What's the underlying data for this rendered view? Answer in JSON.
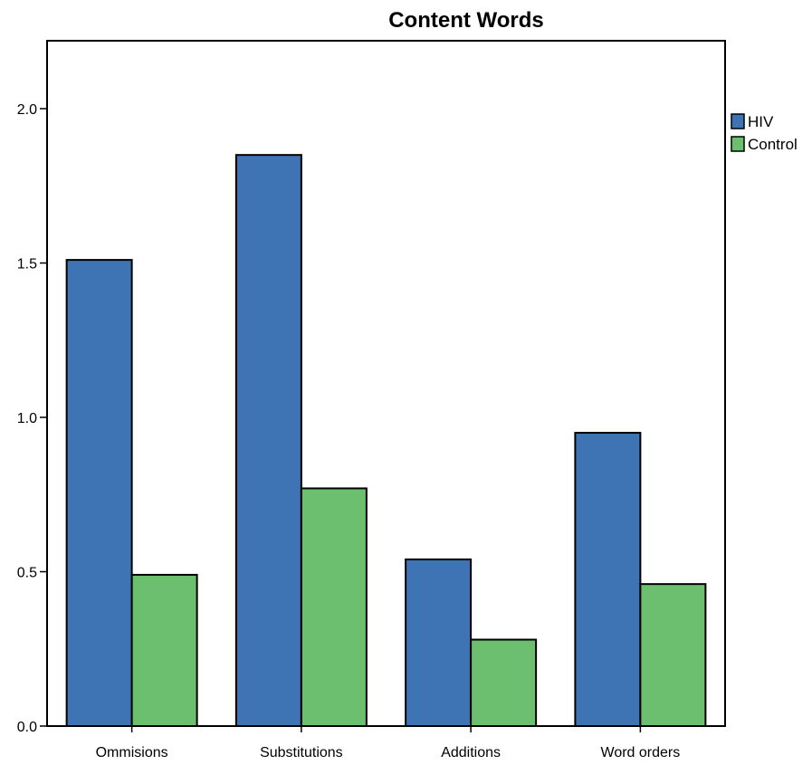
{
  "chart_data": {
    "type": "bar",
    "title": "Content Words",
    "xlabel": "",
    "ylabel": "",
    "categories": [
      "Ommisions",
      "Substitutions",
      "Additions",
      "Word orders"
    ],
    "series": [
      {
        "name": "HIV",
        "color": "#3e74b4",
        "values": [
          1.51,
          1.85,
          0.54,
          0.95
        ]
      },
      {
        "name": "Control",
        "color": "#6bbf6e",
        "values": [
          0.49,
          0.77,
          0.28,
          0.46
        ]
      }
    ],
    "ylim": [
      0,
      2.22
    ],
    "yticks": [
      0.0,
      0.5,
      1.0,
      1.5,
      2.0
    ],
    "ytick_labels": [
      "0.0",
      "0.5",
      "1.0",
      "1.5",
      "2.0"
    ],
    "grid": false,
    "legend": "top-right, outside"
  }
}
